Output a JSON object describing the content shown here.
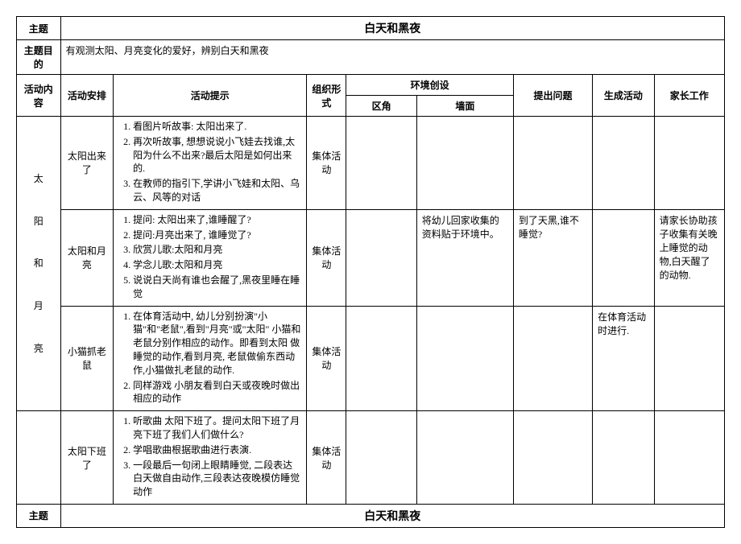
{
  "title": "白天和黑夜",
  "goal_label": "主题目的",
  "goal": "有观测太阳、月亮变化的爱好，辨别白天和黑夜",
  "topic_label": "主题",
  "headers": {
    "content": "活动内容",
    "arrange": "活动安排",
    "hint": "活动提示",
    "org": "组织形式",
    "env": "环境创设",
    "env_corner": "区角",
    "env_wall": "墙面",
    "question": "提出问题",
    "gen": "生成活动",
    "parent": "家长工作"
  },
  "section_title": "太阳和月亮",
  "rows": [
    {
      "arrange": "太阳出来了",
      "hints": [
        "看图片听故事: 太阳出来了.",
        "再次听故事, 想想说说小飞娃去找谁,太阳为什么不出来?最后太阳是如何出来的.",
        "在教师的指引下,学讲小飞娃和太阳、乌云、风等的对话"
      ],
      "org": "集体活动",
      "corner": "",
      "wall": "",
      "question": "",
      "gen": "",
      "parent": ""
    },
    {
      "arrange": "太阳和月亮",
      "hints": [
        "提问: 太阳出来了,谁睡醒了?",
        "提问:月亮出来了, 谁睡觉了?",
        "欣赏儿歌:太阳和月亮",
        "学念儿歌:太阳和月亮",
        "说说白天尚有谁也会醒了,黑夜里睡在睡觉"
      ],
      "org": "集体活动",
      "corner": "",
      "wall": "将幼儿回家收集的资料贴于环境中。",
      "question": "到了天黑,谁不睡觉?",
      "gen": "",
      "parent": "请家长协助孩子收集有关晚上睡觉的动物,白天醒了的动物."
    },
    {
      "arrange": "小猫抓老鼠",
      "hints": [
        "在体育活动中, 幼儿分别扮演\"小猫\"和\"老鼠\",看到\"月亮\"或\"太阳\" 小猫和老鼠分别作相应的动作。即看到太阳 做睡觉的动作,看到月亮, 老鼠做偷东西动作,小猫做扎老鼠的动作.",
        "同样游戏 小朋友看到白天或夜晚时做出相应的动作"
      ],
      "org": "集体活动",
      "corner": "",
      "wall": "",
      "question": "",
      "gen": "在体育活动时进行.",
      "parent": ""
    },
    {
      "arrange": "太阳下班了",
      "hints": [
        "听歌曲 太阳下班了。提问太阳下班了月亮下班了我们人们做什么?",
        "学唱歌曲根据歌曲进行表演.",
        "一段最后一句闭上眼睛睡觉, 二段表达白天做自由动作,三段表达夜晚模仿睡觉动作"
      ],
      "org": "集体活动",
      "corner": "",
      "wall": "",
      "question": "",
      "gen": "",
      "parent": ""
    }
  ],
  "footer_title": "白天和黑夜"
}
